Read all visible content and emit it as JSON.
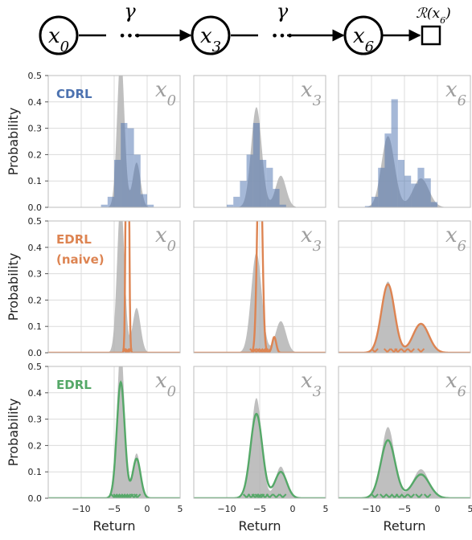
{
  "diagram": {
    "nodes": [
      "x0",
      "x3",
      "x6"
    ],
    "node_labels": [
      {
        "base": "x",
        "sub": "0"
      },
      {
        "base": "x",
        "sub": "3"
      },
      {
        "base": "x",
        "sub": "6"
      }
    ],
    "gamma": "γ",
    "ellipsis": "•••",
    "terminal_label": "R(x6)"
  },
  "chart_data": {
    "type": "grid-of-distribution-plots",
    "rows": [
      {
        "method": "CDRL",
        "label_lines": [
          "CDRL"
        ],
        "color": "#4c72b0"
      },
      {
        "method": "EDRL (naive)",
        "label_lines": [
          "EDRL",
          "(naive)"
        ],
        "color": "#dd8452"
      },
      {
        "method": "EDRL",
        "label_lines": [
          "EDRL"
        ],
        "color": "#55a868"
      }
    ],
    "columns": [
      {
        "state": "x0",
        "base": "x",
        "sub": "0"
      },
      {
        "state": "x3",
        "base": "x",
        "sub": "3"
      },
      {
        "state": "x6",
        "base": "x",
        "sub": "6"
      }
    ],
    "ylabel": "Probability",
    "xlabel": "Return",
    "ylim": [
      0,
      0.5
    ],
    "yticks": [
      "0.5",
      "0.4",
      "0.3",
      "0.2",
      "0.1",
      "0.0"
    ],
    "xlim": [
      -15,
      5
    ],
    "xticks": [
      "−10",
      "−5",
      "0",
      "5"
    ],
    "grid": true,
    "true_distribution_color": "#b4b4b4",
    "true_distributions": [
      {
        "state": "x0",
        "components": [
          {
            "mu": -4.0,
            "sigma": 0.55,
            "peak": 0.58
          },
          {
            "mu": -1.6,
            "sigma": 0.6,
            "peak": 0.17
          }
        ]
      },
      {
        "state": "x3",
        "components": [
          {
            "mu": -5.5,
            "sigma": 0.8,
            "peak": 0.38
          },
          {
            "mu": -1.8,
            "sigma": 0.8,
            "peak": 0.12
          }
        ]
      },
      {
        "state": "x6",
        "components": [
          {
            "mu": -7.5,
            "sigma": 1.0,
            "peak": 0.27
          },
          {
            "mu": -2.5,
            "sigma": 1.2,
            "peak": 0.11
          }
        ]
      }
    ],
    "cdrl_histograms": [
      {
        "state": "x0",
        "bin_edges": [
          -7,
          -6,
          -5,
          -4,
          -3,
          -2,
          -1,
          0,
          1,
          2,
          3
        ],
        "probabilities": [
          0.01,
          0.04,
          0.18,
          0.32,
          0.3,
          0.2,
          0.05,
          0.01,
          0.0,
          0.0
        ]
      },
      {
        "state": "x3",
        "bin_edges": [
          -10,
          -9,
          -8,
          -7,
          -6,
          -5,
          -4,
          -3,
          -2,
          -1,
          0
        ],
        "probabilities": [
          0.01,
          0.04,
          0.1,
          0.2,
          0.32,
          0.18,
          0.15,
          0.07,
          0.01,
          0.0
        ]
      },
      {
        "state": "x6",
        "bin_edges": [
          -11,
          -10,
          -9,
          -8,
          -7,
          -6,
          -5,
          -4,
          -3,
          -2,
          -1,
          0,
          1
        ],
        "probabilities": [
          0.005,
          0.04,
          0.15,
          0.28,
          0.41,
          0.18,
          0.12,
          0.09,
          0.15,
          0.11,
          0.02,
          0.0
        ]
      }
    ],
    "edrl_naive": [
      {
        "state": "x0",
        "kind": "spike",
        "components": [
          {
            "mu": -3.0,
            "sigma": 0.18,
            "peak": 2.0
          }
        ],
        "expectiles": [
          -3.2,
          -3.1,
          -3.0,
          -2.9,
          -2.8
        ]
      },
      {
        "state": "x3",
        "kind": "spike",
        "components": [
          {
            "mu": -5.0,
            "sigma": 0.35,
            "peak": 0.9
          },
          {
            "mu": -2.8,
            "sigma": 0.3,
            "peak": 0.06
          }
        ],
        "expectiles": [
          -6.0,
          -5.5,
          -5.0,
          -4.6,
          -4.2,
          -3.8
        ]
      },
      {
        "state": "x6",
        "kind": "smooth",
        "components": [
          {
            "mu": -7.5,
            "sigma": 1.0,
            "peak": 0.26
          },
          {
            "mu": -2.5,
            "sigma": 1.2,
            "peak": 0.11
          }
        ],
        "expectiles": [
          -9.5,
          -7.6,
          -6.6,
          -6.0,
          -5.0,
          -4.0,
          -2.5
        ]
      }
    ],
    "edrl": [
      {
        "state": "x0",
        "components": [
          {
            "mu": -4.0,
            "sigma": 0.6,
            "peak": 0.44
          },
          {
            "mu": -1.6,
            "sigma": 0.6,
            "peak": 0.15
          }
        ],
        "expectiles": [
          -5.0,
          -4.6,
          -4.2,
          -3.8,
          -3.4,
          -3.0,
          -2.6,
          -2.0,
          -1.5
        ]
      },
      {
        "state": "x3",
        "components": [
          {
            "mu": -5.5,
            "sigma": 0.9,
            "peak": 0.32
          },
          {
            "mu": -1.8,
            "sigma": 0.9,
            "peak": 0.1
          }
        ],
        "expectiles": [
          -7.0,
          -6.3,
          -5.7,
          -5.2,
          -4.8,
          -4.2,
          -3.5,
          -2.5,
          -1.5
        ]
      },
      {
        "state": "x6",
        "components": [
          {
            "mu": -7.5,
            "sigma": 1.1,
            "peak": 0.22
          },
          {
            "mu": -2.5,
            "sigma": 1.3,
            "peak": 0.09
          }
        ],
        "expectiles": [
          -9.5,
          -8.2,
          -7.3,
          -6.5,
          -5.8,
          -5.0,
          -4.0,
          -2.8,
          -1.5
        ]
      }
    ]
  }
}
